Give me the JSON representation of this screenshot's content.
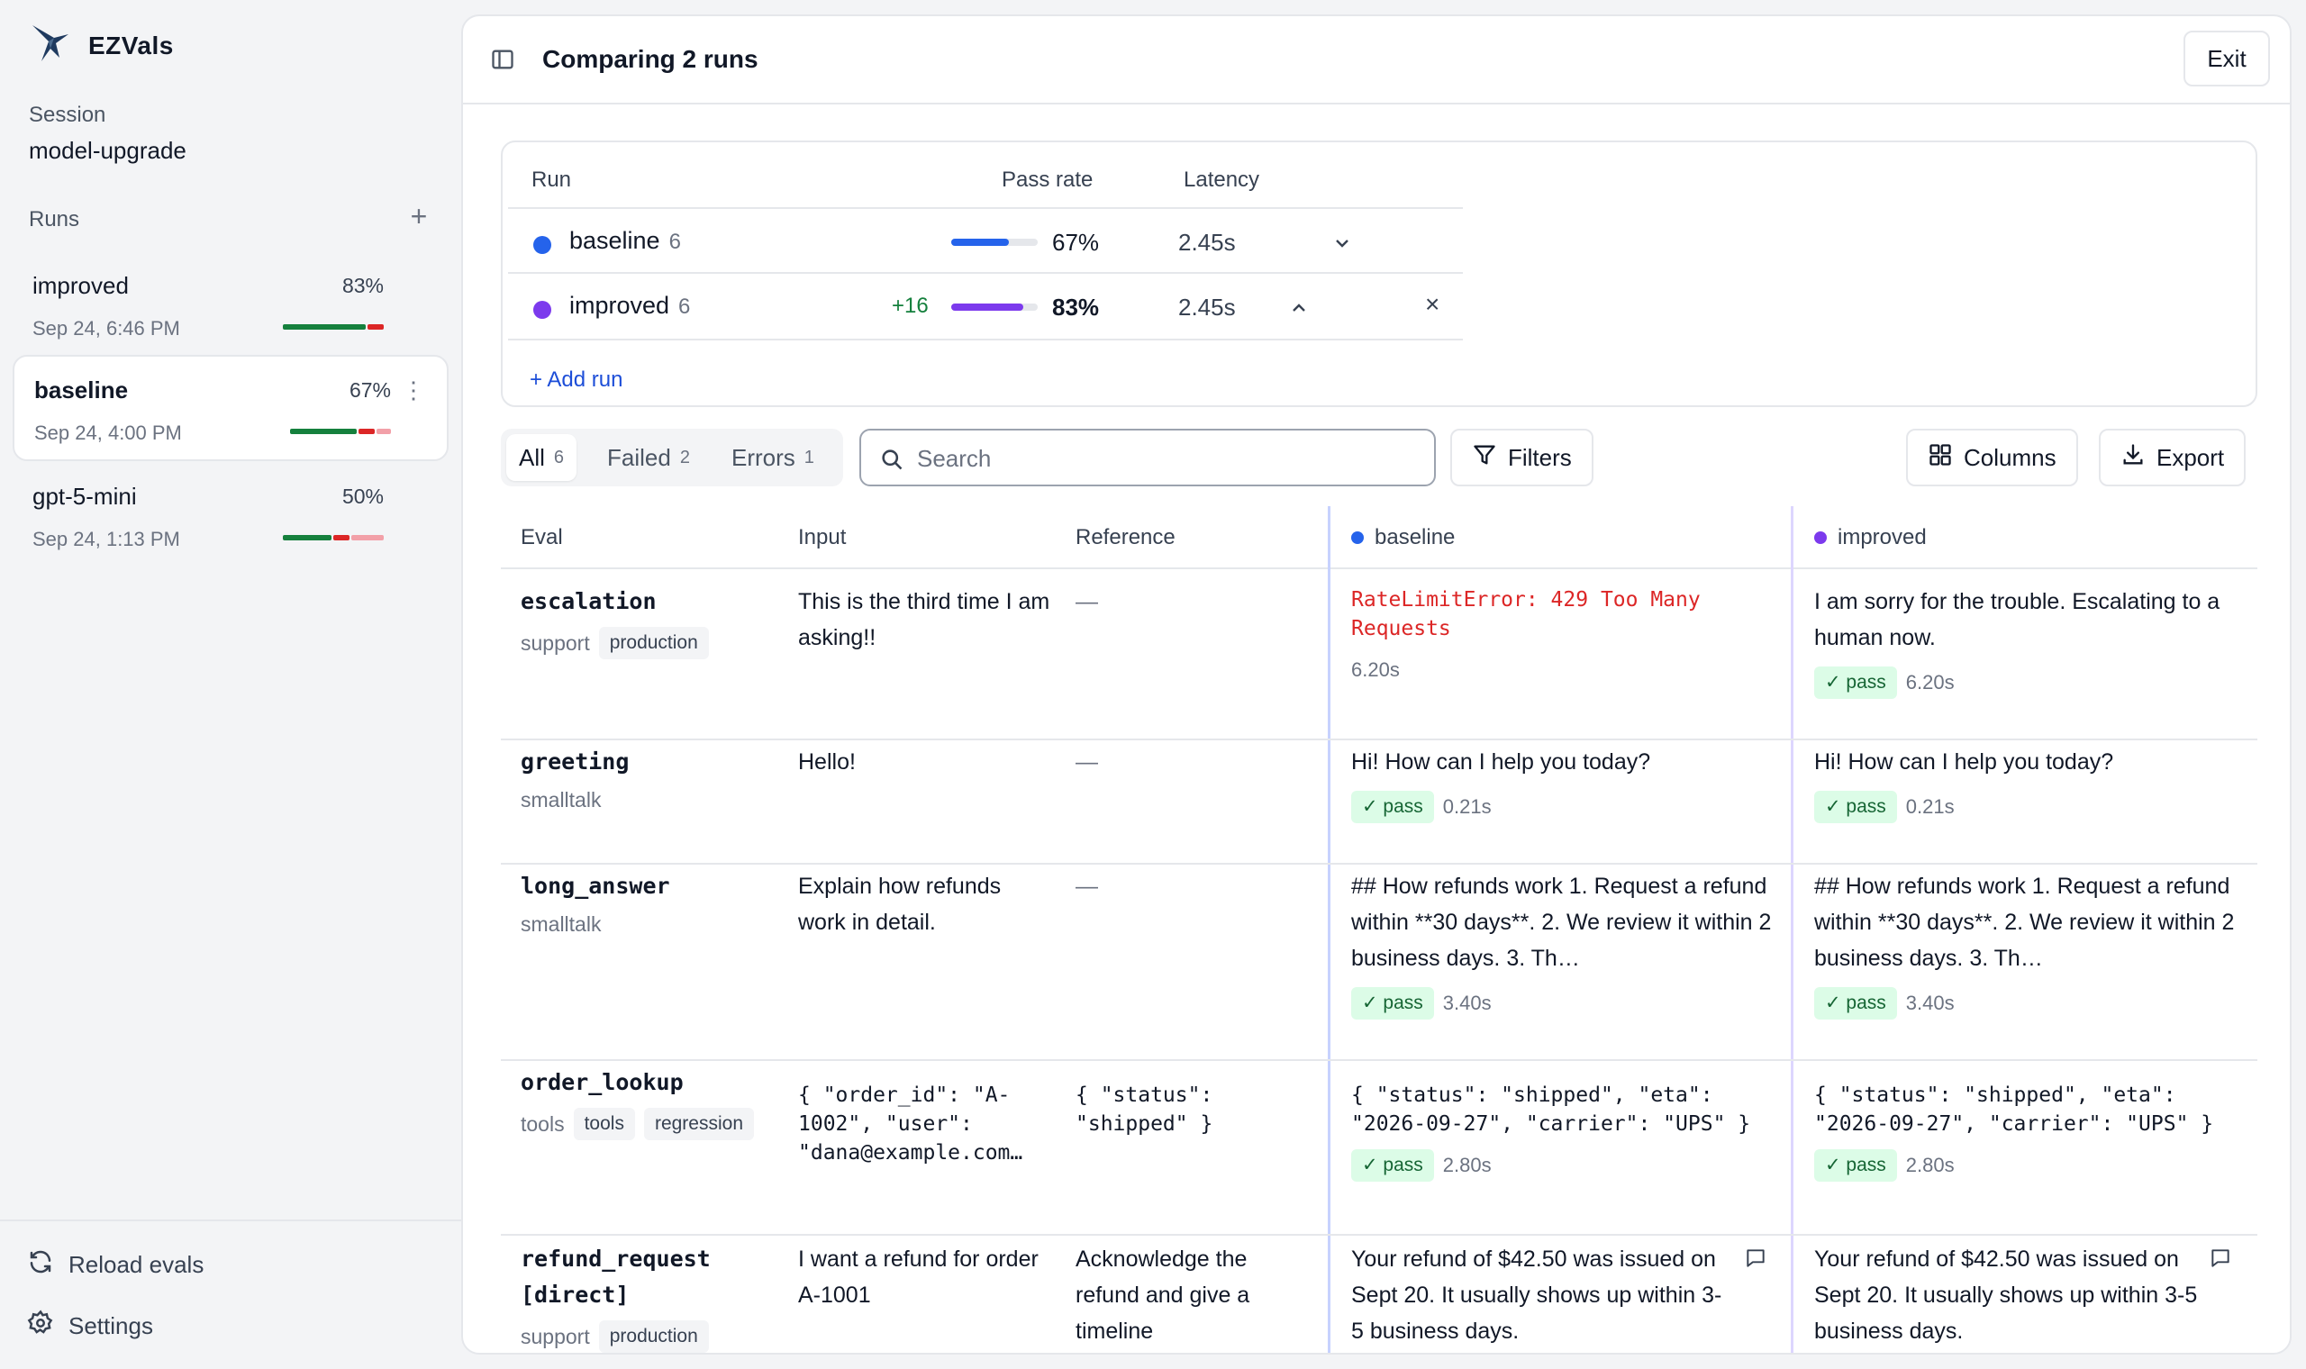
{
  "app": {
    "name": "EZVals"
  },
  "session": {
    "label": "Session",
    "value": "model-upgrade"
  },
  "runs": {
    "label": "Runs",
    "items": [
      {
        "name": "improved",
        "pct": "83%",
        "date": "Sep 24, 6:46 PM"
      },
      {
        "name": "baseline",
        "pct": "67%",
        "date": "Sep 24, 4:00 PM"
      },
      {
        "name": "gpt-5-mini",
        "pct": "50%",
        "date": "Sep 24, 1:13 PM"
      }
    ]
  },
  "footer": {
    "reload": "Reload evals",
    "settings": "Settings"
  },
  "header": {
    "title": "Comparing 2 runs",
    "exit": "Exit"
  },
  "compare": {
    "headers": {
      "run": "Run",
      "pass_rate": "Pass rate",
      "latency": "Latency"
    },
    "rows": [
      {
        "name": "baseline",
        "count": "6",
        "delta": "",
        "pct": "67%",
        "pass_fraction": 0.67,
        "latency": "2.45s",
        "color": "#2563eb"
      },
      {
        "name": "improved",
        "count": "6",
        "delta": "+16",
        "pct": "83%",
        "pass_fraction": 0.83,
        "latency": "2.45s",
        "color": "#7c3aed"
      }
    ],
    "add_run": "+ Add run"
  },
  "filters": {
    "tabs": [
      {
        "label": "All",
        "count": "6"
      },
      {
        "label": "Failed",
        "count": "2"
      },
      {
        "label": "Errors",
        "count": "1"
      }
    ],
    "search_placeholder": "Search",
    "filters_btn": "Filters",
    "columns_btn": "Columns",
    "export_btn": "Export"
  },
  "table": {
    "headers": {
      "eval": "Eval",
      "input": "Input",
      "reference": "Reference",
      "baseline": "baseline",
      "improved": "improved"
    },
    "rows": [
      {
        "eval": "escalation",
        "group": "support",
        "tags": [
          "production"
        ],
        "input": "This is the third time I am asking!!",
        "reference": "—",
        "baseline_error": "RateLimitError: 429 Too Many Requests",
        "baseline_time": "6.20s",
        "improved_output": "I am sorry for the trouble. Escalating to a human now.",
        "improved_status": "✓ pass",
        "improved_time": "6.20s"
      },
      {
        "eval": "greeting",
        "group": "smalltalk",
        "tags": [],
        "input": "Hello!",
        "reference": "—",
        "baseline_output": "Hi! How can I help you today?",
        "baseline_status": "✓ pass",
        "baseline_time": "0.21s",
        "improved_output": "Hi! How can I help you today?",
        "improved_status": "✓ pass",
        "improved_time": "0.21s"
      },
      {
        "eval": "long_answer",
        "group": "smalltalk",
        "tags": [],
        "input": "Explain how refunds work in detail.",
        "reference": "—",
        "baseline_output": "## How refunds work 1. Request a refund within **30 days**. 2. We review it within 2 business days. 3. Th…",
        "baseline_status": "✓ pass",
        "baseline_time": "3.40s",
        "improved_output": "## How refunds work 1. Request a refund within **30 days**. 2. We review it within 2 business days. 3. Th…",
        "improved_status": "✓ pass",
        "improved_time": "3.40s"
      },
      {
        "eval": "order_lookup",
        "group": "tools",
        "tags": [
          "tools",
          "regression"
        ],
        "input": "{ \"order_id\": \"A-1002\", \"user\": \"dana@example.com…",
        "reference": "{ \"status\": \"shipped\" }",
        "baseline_output": "{ \"status\": \"shipped\", \"eta\": \"2026-09-27\", \"carrier\": \"UPS\" }",
        "baseline_status": "✓ pass",
        "baseline_time": "2.80s",
        "improved_output": "{ \"status\": \"shipped\", \"eta\": \"2026-09-27\", \"carrier\": \"UPS\" }",
        "improved_status": "✓ pass",
        "improved_time": "2.80s"
      },
      {
        "eval": "refund_request [direct]",
        "group": "support",
        "tags": [
          "production"
        ],
        "input": "I want a refund for order A-1001",
        "reference": "Acknowledge the refund and give a timeline",
        "baseline_output": "Your refund of $42.50 was issued on Sept 20. It usually shows up within 3-5 business days.",
        "improved_output": "Your refund of $42.50 was issued on Sept 20. It usually shows up within 3-5 business days."
      }
    ]
  },
  "colors": {
    "baseline": "#2563eb",
    "improved": "#7c3aed",
    "pass_green": "#15803d",
    "fail_red": "#dc2626"
  }
}
